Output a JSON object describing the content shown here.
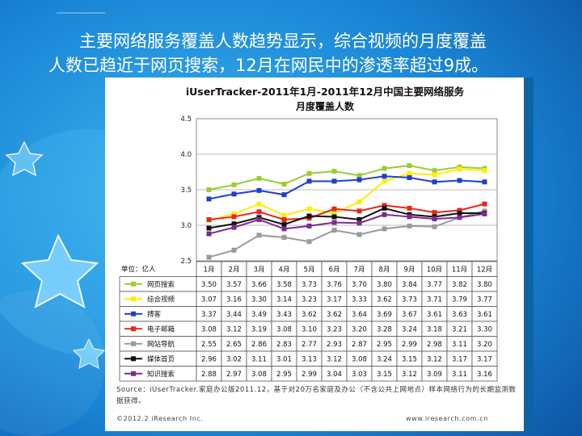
{
  "slide": {
    "line1": "主要网络服务覆盖人数趋势显示，综合视频的月度覆盖",
    "line2": "人数已趋近于网页搜索，12月在网民中的渗透率超过9成。"
  },
  "chart_data": {
    "type": "line",
    "title": "iUserTracker-2011年1月-2011年12月中国主要网络服务",
    "subtitle": "月度覆盖人数",
    "unit_label": "单位：亿人",
    "categories": [
      "1月",
      "2月",
      "3月",
      "4月",
      "5月",
      "6月",
      "7月",
      "8月",
      "9月",
      "10月",
      "11月",
      "12月"
    ],
    "ylim": [
      2.5,
      4.5
    ],
    "yticks": [
      "2.5",
      "3.0",
      "3.5",
      "4.0",
      "4.5"
    ],
    "grid": true,
    "series": [
      {
        "name": "网页搜索",
        "color": "#9acd32",
        "values": [
          3.5,
          3.57,
          3.66,
          3.58,
          3.73,
          3.76,
          3.7,
          3.8,
          3.84,
          3.77,
          3.82,
          3.8
        ]
      },
      {
        "name": "综合视频",
        "color": "#ffee00",
        "values": [
          3.07,
          3.16,
          3.3,
          3.14,
          3.23,
          3.17,
          3.33,
          3.62,
          3.73,
          3.71,
          3.79,
          3.77
        ]
      },
      {
        "name": "搏客",
        "color": "#1f3fcf",
        "values": [
          3.37,
          3.44,
          3.49,
          3.43,
          3.62,
          3.62,
          3.64,
          3.69,
          3.67,
          3.61,
          3.63,
          3.61
        ]
      },
      {
        "name": "电子邮箱",
        "color": "#e8271b",
        "values": [
          3.08,
          3.12,
          3.19,
          3.08,
          3.1,
          3.23,
          3.2,
          3.28,
          3.24,
          3.18,
          3.21,
          3.3
        ]
      },
      {
        "name": "网站导航",
        "color": "#9a9a9a",
        "values": [
          2.55,
          2.65,
          2.86,
          2.83,
          2.77,
          2.93,
          2.87,
          2.95,
          2.99,
          2.98,
          3.11,
          3.2
        ]
      },
      {
        "name": "媒体首页",
        "color": "#111111",
        "values": [
          2.96,
          3.02,
          3.11,
          3.01,
          3.13,
          3.12,
          3.08,
          3.24,
          3.15,
          3.12,
          3.17,
          3.17
        ]
      },
      {
        "name": "知识搜索",
        "color": "#7b2d8e",
        "values": [
          2.88,
          2.97,
          3.08,
          2.95,
          2.99,
          3.04,
          3.03,
          3.15,
          3.12,
          3.09,
          3.11,
          3.16
        ]
      }
    ],
    "source": "Source：iUserTracker.家庭办公版2011.12，基于对20万名家庭及办公（不含公共上网地点）样本网络行为的长期监测数据获得。",
    "footer_left": "©2012.2 iResearch Inc.",
    "footer_right": "www.iresearch.com.cn"
  }
}
